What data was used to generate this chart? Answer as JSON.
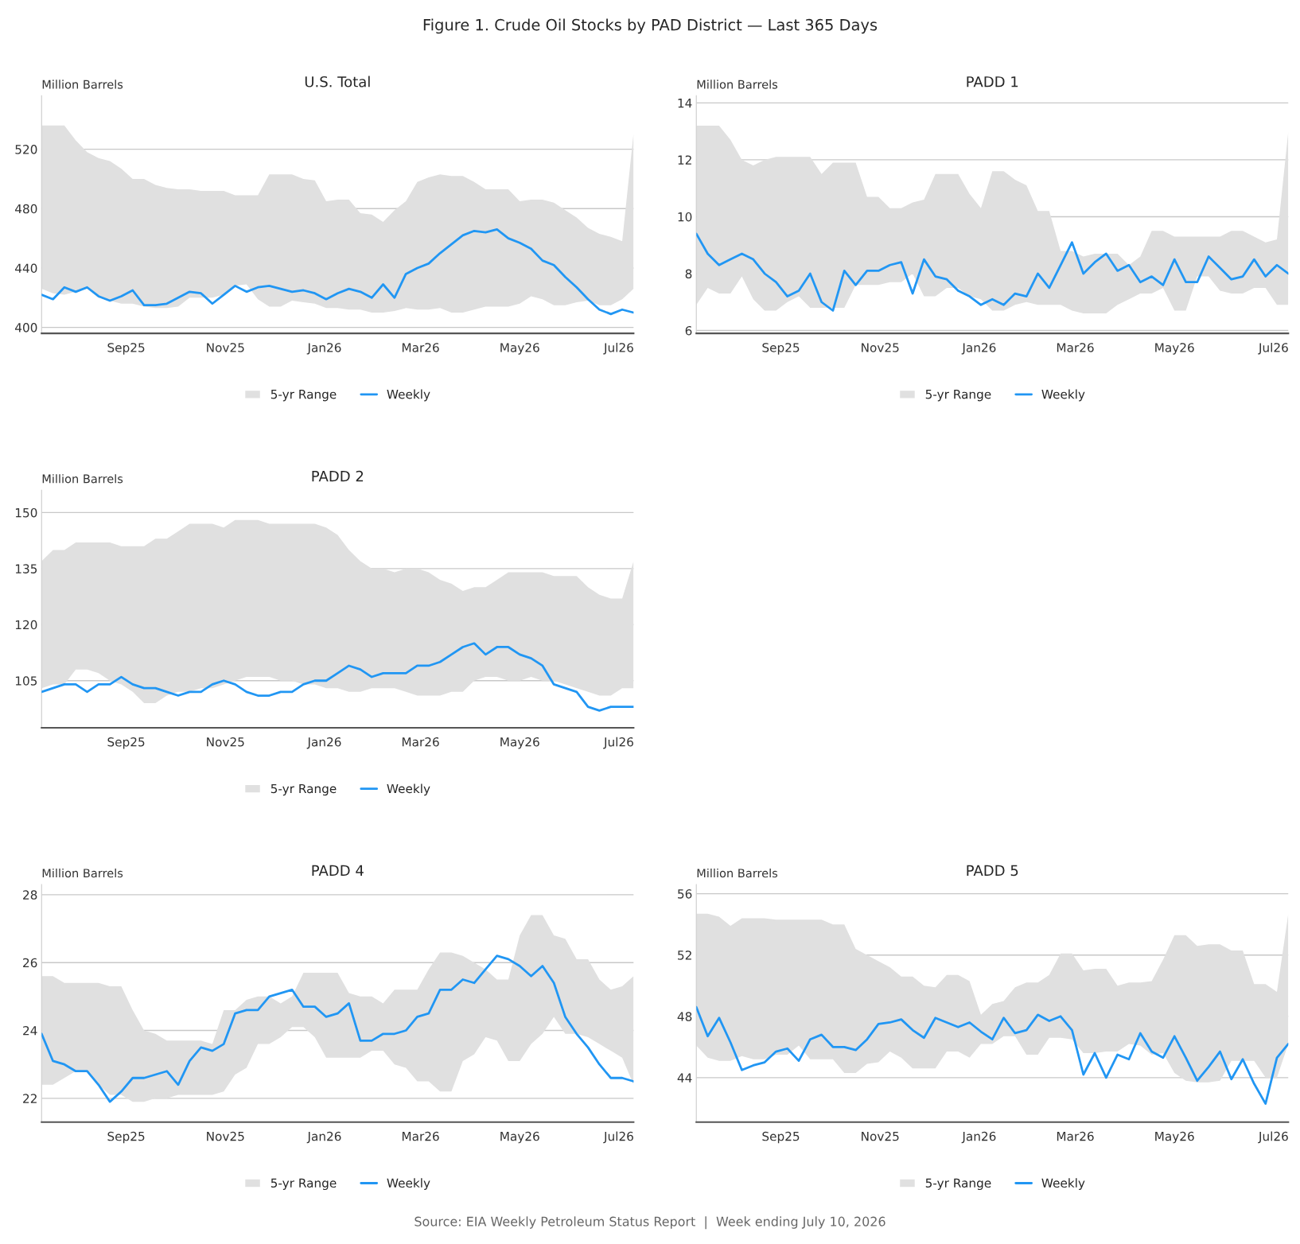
{
  "chart_data": [
    {
      "type": "line",
      "title": "U.S. Total",
      "ylabel": "Million Barrels",
      "annotations": [
        "Figure 1. Crude Oil Stocks by PAD District — Last 365 Days",
        "5-yr Range"
      ],
      "x": [
        "2025-07-11",
        "2025-07-18",
        "2025-07-25",
        "2025-08-01",
        "2025-08-08",
        "2025-08-15",
        "2025-08-22",
        "2025-08-29",
        "2025-09-05",
        "2025-09-12",
        "2025-09-19",
        "2025-09-26",
        "2025-10-03",
        "2025-10-10",
        "2025-10-17",
        "2025-10-24",
        "2025-10-31",
        "2025-11-07",
        "2025-11-14",
        "2025-11-21",
        "2025-11-28",
        "2025-12-05",
        "2025-12-12",
        "2025-12-19",
        "2025-12-26",
        "2026-01-02",
        "2026-01-09",
        "2026-01-16",
        "2026-01-23",
        "2026-01-30",
        "2026-02-06",
        "2026-02-13",
        "2026-02-20",
        "2026-02-27",
        "2026-03-06",
        "2026-03-13",
        "2026-03-20",
        "2026-03-27",
        "2026-04-03",
        "2026-04-10",
        "2026-04-17",
        "2026-04-24",
        "2026-05-01",
        "2026-05-08",
        "2026-05-15",
        "2026-05-22",
        "2026-05-29",
        "2026-06-05",
        "2026-06-12",
        "2026-06-19",
        "2026-06-26",
        "2026-07-03",
        "2026-07-10"
      ],
      "series": [
        {
          "name": "Weekly",
          "color": "#2196f3",
          "values": [
            422,
            419,
            427,
            424,
            427,
            421,
            418,
            421,
            425,
            415,
            415,
            416,
            420,
            424,
            423,
            416,
            422,
            428,
            424,
            427,
            428,
            426,
            424,
            425,
            423,
            419,
            423,
            426,
            424,
            420,
            429,
            420,
            436,
            440,
            443,
            450,
            456,
            462,
            465,
            464,
            466,
            460,
            457,
            453,
            445,
            442,
            434,
            427,
            419,
            412,
            409,
            412,
            410
          ],
          "upper": [
            536,
            536,
            536,
            526,
            518,
            514,
            512,
            507,
            500,
            500,
            496,
            494,
            493,
            493,
            492,
            492,
            492,
            489,
            489,
            489,
            503,
            503,
            503,
            500,
            499,
            485,
            486,
            486,
            477,
            476,
            471,
            479,
            485,
            498,
            501,
            503,
            502,
            502,
            498,
            493,
            493,
            493,
            485,
            486,
            486,
            484,
            479,
            474,
            467,
            463,
            461,
            458,
            531
          ],
          "lower": [
            426,
            423,
            422,
            424,
            426,
            420,
            418,
            416,
            416,
            414,
            413,
            413,
            414,
            420,
            420,
            420,
            422,
            428,
            429,
            419,
            414,
            414,
            418,
            417,
            416,
            413,
            413,
            412,
            412,
            410,
            410,
            411,
            413,
            412,
            412,
            413,
            410,
            410,
            412,
            414,
            414,
            414,
            416,
            421,
            419,
            415,
            415,
            417,
            418,
            415,
            415,
            419,
            426
          ]
        }
      ],
      "xlim": [
        "2025-07-11",
        "2026-07-10"
      ],
      "xticks": [
        {
          "value": "2025-09-01",
          "label": "Sep25"
        },
        {
          "value": "2025-11-01",
          "label": "Nov25"
        },
        {
          "value": "2026-01-01",
          "label": "Jan26"
        },
        {
          "value": "2026-03-01",
          "label": "Mar26"
        },
        {
          "value": "2026-05-01",
          "label": "May26"
        },
        {
          "value": "2026-07-01",
          "label": "Jul26"
        }
      ],
      "ylim": [
        396,
        556
      ],
      "yticks": [
        400,
        440,
        480,
        520
      ],
      "grid": "y",
      "legend": "bottom"
    },
    {
      "type": "line",
      "title": "PADD 1",
      "ylabel": "Million Barrels",
      "annotations": [
        "5-yr Range"
      ],
      "x": [
        "2025-07-11",
        "2025-07-18",
        "2025-07-25",
        "2025-08-01",
        "2025-08-08",
        "2025-08-15",
        "2025-08-22",
        "2025-08-29",
        "2025-09-05",
        "2025-09-12",
        "2025-09-19",
        "2025-09-26",
        "2025-10-03",
        "2025-10-10",
        "2025-10-17",
        "2025-10-24",
        "2025-10-31",
        "2025-11-07",
        "2025-11-14",
        "2025-11-21",
        "2025-11-28",
        "2025-12-05",
        "2025-12-12",
        "2025-12-19",
        "2025-12-26",
        "2026-01-02",
        "2026-01-09",
        "2026-01-16",
        "2026-01-23",
        "2026-01-30",
        "2026-02-06",
        "2026-02-13",
        "2026-02-20",
        "2026-02-27",
        "2026-03-06",
        "2026-03-13",
        "2026-03-20",
        "2026-03-27",
        "2026-04-03",
        "2026-04-10",
        "2026-04-17",
        "2026-04-24",
        "2026-05-01",
        "2026-05-08",
        "2026-05-15",
        "2026-05-22",
        "2026-05-29",
        "2026-06-05",
        "2026-06-12",
        "2026-06-19",
        "2026-06-26",
        "2026-07-03",
        "2026-07-10"
      ],
      "series": [
        {
          "name": "Weekly",
          "color": "#2196f3",
          "values": [
            9.4,
            8.7,
            8.3,
            8.5,
            8.7,
            8.5,
            8.0,
            7.7,
            7.2,
            7.4,
            8.0,
            7.0,
            6.7,
            8.1,
            7.6,
            8.1,
            8.1,
            8.3,
            8.4,
            7.3,
            8.5,
            7.9,
            7.8,
            7.4,
            7.2,
            6.9,
            7.1,
            6.9,
            7.3,
            7.2,
            8.0,
            7.5,
            8.3,
            9.1,
            8.0,
            8.4,
            8.7,
            8.1,
            8.3,
            7.7,
            7.9,
            7.6,
            8.5,
            7.7,
            7.7,
            8.6,
            8.2,
            7.8,
            7.9,
            8.5,
            7.9,
            8.3,
            8.0
          ],
          "upper": [
            13.2,
            13.2,
            13.2,
            12.7,
            12.0,
            11.8,
            12.0,
            12.1,
            12.1,
            12.1,
            12.1,
            11.5,
            11.9,
            11.9,
            11.9,
            10.7,
            10.7,
            10.3,
            10.3,
            10.5,
            10.6,
            11.5,
            11.5,
            11.5,
            10.8,
            10.3,
            11.6,
            11.6,
            11.3,
            11.1,
            10.2,
            10.2,
            8.8,
            8.8,
            8.6,
            8.7,
            8.7,
            8.7,
            8.3,
            8.6,
            9.5,
            9.5,
            9.3,
            9.3,
            9.3,
            9.3,
            9.3,
            9.5,
            9.5,
            9.3,
            9.1,
            9.2,
            13.0
          ],
          "lower": [
            6.9,
            7.5,
            7.3,
            7.3,
            7.9,
            7.1,
            6.7,
            6.7,
            7.0,
            7.2,
            6.8,
            6.8,
            6.8,
            6.8,
            7.6,
            7.6,
            7.6,
            7.7,
            7.7,
            8.0,
            7.2,
            7.2,
            7.5,
            7.5,
            7.2,
            7.1,
            6.7,
            6.7,
            6.9,
            7.0,
            6.9,
            6.9,
            6.9,
            6.7,
            6.6,
            6.6,
            6.6,
            6.9,
            7.1,
            7.3,
            7.3,
            7.5,
            6.7,
            6.7,
            7.9,
            7.9,
            7.4,
            7.3,
            7.3,
            7.5,
            7.5,
            6.9,
            6.9
          ]
        }
      ],
      "xlim": [
        "2025-07-11",
        "2026-07-10"
      ],
      "xticks": [
        {
          "value": "2025-09-01",
          "label": "Sep25"
        },
        {
          "value": "2025-11-01",
          "label": "Nov25"
        },
        {
          "value": "2026-01-01",
          "label": "Jan26"
        },
        {
          "value": "2026-03-01",
          "label": "Mar26"
        },
        {
          "value": "2026-05-01",
          "label": "May26"
        },
        {
          "value": "2026-07-01",
          "label": "Jul26"
        }
      ],
      "ylim": [
        5.9,
        14.25
      ],
      "yticks": [
        6,
        8,
        10,
        12,
        14
      ],
      "grid": "y",
      "legend": "bottom"
    },
    {
      "type": "line",
      "title": "PADD 2",
      "ylabel": "Million Barrels",
      "annotations": [
        "5-yr Range"
      ],
      "x": [
        "2025-07-11",
        "2025-07-18",
        "2025-07-25",
        "2025-08-01",
        "2025-08-08",
        "2025-08-15",
        "2025-08-22",
        "2025-08-29",
        "2025-09-05",
        "2025-09-12",
        "2025-09-19",
        "2025-09-26",
        "2025-10-03",
        "2025-10-10",
        "2025-10-17",
        "2025-10-24",
        "2025-10-31",
        "2025-11-07",
        "2025-11-14",
        "2025-11-21",
        "2025-11-28",
        "2025-12-05",
        "2025-12-12",
        "2025-12-19",
        "2025-12-26",
        "2026-01-02",
        "2026-01-09",
        "2026-01-16",
        "2026-01-23",
        "2026-01-30",
        "2026-02-06",
        "2026-02-13",
        "2026-02-20",
        "2026-02-27",
        "2026-03-06",
        "2026-03-13",
        "2026-03-20",
        "2026-03-27",
        "2026-04-03",
        "2026-04-10",
        "2026-04-17",
        "2026-04-24",
        "2026-05-01",
        "2026-05-08",
        "2026-05-15",
        "2026-05-22",
        "2026-05-29",
        "2026-06-05",
        "2026-06-12",
        "2026-06-19",
        "2026-06-26",
        "2026-07-03",
        "2026-07-10"
      ],
      "series": [
        {
          "name": "Weekly",
          "color": "#2196f3",
          "values": [
            102,
            103,
            104,
            104,
            102,
            104,
            104,
            106,
            104,
            103,
            103,
            102,
            101,
            102,
            102,
            104,
            105,
            104,
            102,
            101,
            101,
            102,
            102,
            104,
            105,
            105,
            107,
            109,
            108,
            106,
            107,
            107,
            107,
            109,
            109,
            110,
            112,
            114,
            115,
            112,
            114,
            114,
            112,
            111,
            109,
            104,
            103,
            102,
            98,
            97,
            98,
            98,
            98
          ],
          "upper": [
            137,
            140,
            140,
            142,
            142,
            142,
            142,
            141,
            141,
            141,
            143,
            143,
            145,
            147,
            147,
            147,
            146,
            148,
            148,
            148,
            147,
            147,
            147,
            147,
            147,
            146,
            144,
            140,
            137,
            135,
            135,
            134,
            135,
            135,
            134,
            132,
            131,
            129,
            130,
            130,
            132,
            134,
            134,
            134,
            134,
            133,
            133,
            133,
            130,
            128,
            127,
            127,
            137
          ],
          "lower": [
            103,
            104,
            104,
            108,
            108,
            107,
            105,
            104,
            102,
            99,
            99,
            101,
            102,
            102,
            103,
            103,
            104,
            105,
            106,
            106,
            106,
            105,
            105,
            104,
            104,
            103,
            103,
            102,
            102,
            103,
            103,
            103,
            102,
            101,
            101,
            101,
            102,
            102,
            105,
            106,
            106,
            105,
            105,
            106,
            105,
            105,
            104,
            103,
            102,
            101,
            101,
            103,
            103
          ]
        }
      ],
      "xlim": [
        "2025-07-11",
        "2026-07-10"
      ],
      "xticks": [
        {
          "value": "2025-09-01",
          "label": "Sep25"
        },
        {
          "value": "2025-11-01",
          "label": "Nov25"
        },
        {
          "value": "2026-01-01",
          "label": "Jan26"
        },
        {
          "value": "2026-03-01",
          "label": "Mar26"
        },
        {
          "value": "2026-05-01",
          "label": "May26"
        },
        {
          "value": "2026-07-01",
          "label": "Jul26"
        }
      ],
      "ylim": [
        92.4,
        156
      ],
      "yticks": [
        105,
        120,
        135,
        150
      ],
      "grid": "y",
      "legend": "bottom"
    },
    {
      "type": "line",
      "title": "PADD 4",
      "ylabel": "Million Barrels",
      "annotations": [
        "5-yr Range"
      ],
      "x": [
        "2025-07-11",
        "2025-07-18",
        "2025-07-25",
        "2025-08-01",
        "2025-08-08",
        "2025-08-15",
        "2025-08-22",
        "2025-08-29",
        "2025-09-05",
        "2025-09-12",
        "2025-09-19",
        "2025-09-26",
        "2025-10-03",
        "2025-10-10",
        "2025-10-17",
        "2025-10-24",
        "2025-10-31",
        "2025-11-07",
        "2025-11-14",
        "2025-11-21",
        "2025-11-28",
        "2025-12-05",
        "2025-12-12",
        "2025-12-19",
        "2025-12-26",
        "2026-01-02",
        "2026-01-09",
        "2026-01-16",
        "2026-01-23",
        "2026-01-30",
        "2026-02-06",
        "2026-02-13",
        "2026-02-20",
        "2026-02-27",
        "2026-03-06",
        "2026-03-13",
        "2026-03-20",
        "2026-03-27",
        "2026-04-03",
        "2026-04-10",
        "2026-04-17",
        "2026-04-24",
        "2026-05-01",
        "2026-05-08",
        "2026-05-15",
        "2026-05-22",
        "2026-05-29",
        "2026-06-05",
        "2026-06-12",
        "2026-06-19",
        "2026-06-26",
        "2026-07-03",
        "2026-07-10"
      ],
      "series": [
        {
          "name": "Weekly",
          "color": "#2196f3",
          "values": [
            23.9,
            23.1,
            23.0,
            22.8,
            22.8,
            22.4,
            21.9,
            22.2,
            22.6,
            22.6,
            22.7,
            22.8,
            22.4,
            23.1,
            23.5,
            23.4,
            23.6,
            24.5,
            24.6,
            24.6,
            25.0,
            25.1,
            25.2,
            24.7,
            24.7,
            24.4,
            24.5,
            24.8,
            23.7,
            23.7,
            23.9,
            23.9,
            24.0,
            24.4,
            24.5,
            25.2,
            25.2,
            25.5,
            25.4,
            25.8,
            26.2,
            26.1,
            25.9,
            25.6,
            25.9,
            25.4,
            24.4,
            23.9,
            23.5,
            23.0,
            22.6,
            22.6,
            22.5
          ],
          "upper": [
            25.6,
            25.6,
            25.4,
            25.4,
            25.4,
            25.4,
            25.3,
            25.3,
            24.6,
            24.0,
            23.9,
            23.7,
            23.7,
            23.7,
            23.7,
            23.6,
            24.6,
            24.6,
            24.9,
            25.0,
            25.0,
            24.8,
            25.0,
            25.7,
            25.7,
            25.7,
            25.7,
            25.1,
            25.0,
            25.0,
            24.8,
            25.2,
            25.2,
            25.2,
            25.8,
            26.3,
            26.3,
            26.2,
            26.0,
            25.8,
            25.5,
            25.5,
            26.8,
            27.4,
            27.4,
            26.8,
            26.7,
            26.1,
            26.1,
            25.5,
            25.2,
            25.3,
            25.6
          ],
          "lower": [
            22.4,
            22.4,
            22.6,
            22.8,
            22.8,
            22.4,
            22.1,
            22.1,
            21.9,
            21.9,
            22.0,
            22.0,
            22.1,
            22.1,
            22.1,
            22.1,
            22.2,
            22.7,
            22.9,
            23.6,
            23.6,
            23.8,
            24.1,
            24.1,
            23.8,
            23.2,
            23.2,
            23.2,
            23.2,
            23.4,
            23.4,
            23.0,
            22.9,
            22.5,
            22.5,
            22.2,
            22.2,
            23.1,
            23.3,
            23.8,
            23.7,
            23.1,
            23.1,
            23.6,
            23.9,
            24.4,
            23.9,
            23.9,
            23.8,
            23.6,
            23.4,
            23.2,
            22.4
          ]
        }
      ],
      "xlim": [
        "2025-07-11",
        "2026-07-10"
      ],
      "xticks": [
        {
          "value": "2025-09-01",
          "label": "Sep25"
        },
        {
          "value": "2025-11-01",
          "label": "Nov25"
        },
        {
          "value": "2026-01-01",
          "label": "Jan26"
        },
        {
          "value": "2026-03-01",
          "label": "Mar26"
        },
        {
          "value": "2026-05-01",
          "label": "May26"
        },
        {
          "value": "2026-07-01",
          "label": "Jul26"
        }
      ],
      "ylim": [
        21.3,
        28.3
      ],
      "yticks": [
        22,
        24,
        26,
        28
      ],
      "grid": "y",
      "legend": "bottom"
    },
    {
      "type": "line",
      "title": "PADD 5",
      "ylabel": "Million Barrels",
      "annotations": [
        "Source: EIA Weekly Petroleum Status Report  |  Week ending July 10, 2026",
        "5-yr Range"
      ],
      "x": [
        "2025-07-11",
        "2025-07-18",
        "2025-07-25",
        "2025-08-01",
        "2025-08-08",
        "2025-08-15",
        "2025-08-22",
        "2025-08-29",
        "2025-09-05",
        "2025-09-12",
        "2025-09-19",
        "2025-09-26",
        "2025-10-03",
        "2025-10-10",
        "2025-10-17",
        "2025-10-24",
        "2025-10-31",
        "2025-11-07",
        "2025-11-14",
        "2025-11-21",
        "2025-11-28",
        "2025-12-05",
        "2025-12-12",
        "2025-12-19",
        "2025-12-26",
        "2026-01-02",
        "2026-01-09",
        "2026-01-16",
        "2026-01-23",
        "2026-01-30",
        "2026-02-06",
        "2026-02-13",
        "2026-02-20",
        "2026-02-27",
        "2026-03-06",
        "2026-03-13",
        "2026-03-20",
        "2026-03-27",
        "2026-04-03",
        "2026-04-10",
        "2026-04-17",
        "2026-04-24",
        "2026-05-01",
        "2026-05-08",
        "2026-05-15",
        "2026-05-22",
        "2026-05-29",
        "2026-06-05",
        "2026-06-12",
        "2026-06-19",
        "2026-06-26",
        "2026-07-03",
        "2026-07-10"
      ],
      "series": [
        {
          "name": "Weekly",
          "color": "#2196f3",
          "values": [
            48.6,
            46.7,
            47.9,
            46.3,
            44.5,
            44.8,
            45.0,
            45.7,
            45.9,
            45.1,
            46.5,
            46.8,
            46.0,
            46.0,
            45.8,
            46.5,
            47.5,
            47.6,
            47.8,
            47.1,
            46.6,
            47.9,
            47.6,
            47.3,
            47.6,
            47.0,
            46.5,
            47.9,
            46.9,
            47.1,
            48.1,
            47.7,
            48.0,
            47.1,
            44.2,
            45.6,
            44.0,
            45.5,
            45.2,
            46.9,
            45.7,
            45.3,
            46.7,
            45.3,
            43.8,
            44.7,
            45.7,
            43.9,
            45.2,
            43.6,
            42.3,
            45.3,
            46.2
          ],
          "upper": [
            54.7,
            54.7,
            54.5,
            53.9,
            54.4,
            54.4,
            54.4,
            54.3,
            54.3,
            54.3,
            54.3,
            54.3,
            54.0,
            54.0,
            52.4,
            52.0,
            51.6,
            51.2,
            50.6,
            50.6,
            50.0,
            49.9,
            50.7,
            50.7,
            50.3,
            48.1,
            48.8,
            49.0,
            49.9,
            50.2,
            50.2,
            50.7,
            52.1,
            52.1,
            51.0,
            51.1,
            51.1,
            50.0,
            50.2,
            50.2,
            50.3,
            51.7,
            53.3,
            53.3,
            52.6,
            52.7,
            52.7,
            52.3,
            52.3,
            50.1,
            50.1,
            49.6,
            54.7
          ],
          "lower": [
            46.1,
            45.3,
            45.1,
            45.1,
            45.4,
            45.2,
            45.2,
            45.5,
            45.5,
            46.1,
            45.2,
            45.2,
            45.2,
            44.3,
            44.3,
            44.9,
            45.0,
            45.7,
            45.3,
            44.6,
            44.6,
            44.6,
            45.7,
            45.7,
            45.3,
            46.2,
            46.2,
            46.7,
            46.7,
            45.5,
            45.5,
            46.6,
            46.6,
            46.5,
            45.6,
            45.6,
            45.7,
            45.7,
            46.2,
            46.1,
            45.5,
            45.6,
            44.3,
            43.8,
            43.7,
            43.7,
            43.8,
            45.1,
            45.1,
            45.1,
            44.0,
            44.0,
            46.2
          ]
        }
      ],
      "xlim": [
        "2025-07-11",
        "2026-07-10"
      ],
      "xticks": [
        {
          "value": "2025-09-01",
          "label": "Sep25"
        },
        {
          "value": "2025-11-01",
          "label": "Nov25"
        },
        {
          "value": "2026-01-01",
          "label": "Jan26"
        },
        {
          "value": "2026-03-01",
          "label": "Mar26"
        },
        {
          "value": "2026-05-01",
          "label": "May26"
        },
        {
          "value": "2026-07-01",
          "label": "Jul26"
        }
      ],
      "ylim": [
        41.1,
        56.6
      ],
      "yticks": [
        44,
        48,
        52,
        56
      ],
      "grid": "y",
      "legend": "bottom"
    }
  ]
}
